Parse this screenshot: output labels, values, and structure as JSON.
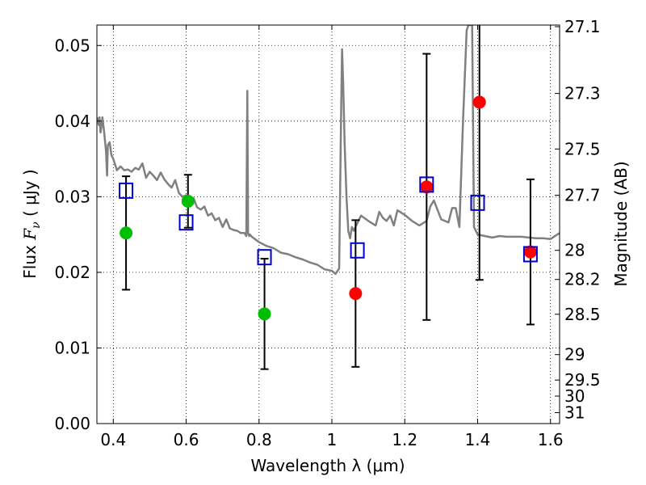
{
  "chart_data": {
    "type": "scatter",
    "xlabel": "Wavelength  λ (μm)",
    "ylabel": "Flux  F_ν  ( μJy )",
    "ylabel_parts": {
      "prefix": "Flux  ",
      "symbol": "F",
      "subscript": "ν",
      "suffix": "  ( μJy )"
    },
    "y2label": "Magnitude (AB)",
    "xlim": [
      0.355,
      1.625
    ],
    "ylim": [
      0.0,
      0.0527
    ],
    "grid": true,
    "grid_style": "dotted",
    "x_ticks": [
      0.4,
      0.6,
      0.8,
      1.0,
      1.2,
      1.4,
      1.6
    ],
    "x_tick_labels": [
      "0.4",
      "0.6",
      "0.8",
      "1",
      "1.2",
      "1.4",
      "1.6"
    ],
    "y_ticks": [
      0.0,
      0.01,
      0.02,
      0.03,
      0.04,
      0.05
    ],
    "y_tick_labels": [
      "0.00",
      "0.01",
      "0.02",
      "0.03",
      "0.04",
      "0.05"
    ],
    "y2_ticks": [
      27.1,
      27.3,
      27.5,
      27.7,
      28,
      28.2,
      28.5,
      29,
      29.5,
      30,
      31
    ],
    "y2_tick_labels": [
      "27.1",
      "27.3",
      "27.5",
      "27.7",
      "28",
      "28.2",
      "28.5",
      "29",
      "29.5",
      "30",
      "31"
    ],
    "series": [
      {
        "kind": "line",
        "color": "#808080",
        "x": [
          0.355,
          0.36,
          0.362,
          0.365,
          0.368,
          0.37,
          0.375,
          0.38,
          0.383,
          0.385,
          0.39,
          0.395,
          0.4,
          0.41,
          0.42,
          0.43,
          0.44,
          0.45,
          0.46,
          0.47,
          0.48,
          0.49,
          0.5,
          0.51,
          0.52,
          0.53,
          0.54,
          0.55,
          0.56,
          0.57,
          0.58,
          0.59,
          0.6,
          0.61,
          0.62,
          0.63,
          0.64,
          0.65,
          0.66,
          0.67,
          0.68,
          0.69,
          0.7,
          0.71,
          0.72,
          0.73,
          0.74,
          0.75,
          0.76,
          0.765,
          0.768,
          0.77,
          0.773,
          0.775,
          0.78,
          0.8,
          0.82,
          0.84,
          0.86,
          0.88,
          0.9,
          0.92,
          0.94,
          0.96,
          0.98,
          1.0,
          1.01,
          1.02,
          1.025,
          1.028,
          1.031,
          1.035,
          1.04,
          1.045,
          1.05,
          1.055,
          1.06,
          1.08,
          1.1,
          1.12,
          1.13,
          1.14,
          1.15,
          1.16,
          1.17,
          1.18,
          1.2,
          1.22,
          1.24,
          1.26,
          1.27,
          1.28,
          1.3,
          1.32,
          1.33,
          1.34,
          1.35,
          1.36,
          1.37,
          1.375,
          1.38,
          1.385,
          1.39,
          1.4,
          1.42,
          1.44,
          1.46,
          1.48,
          1.5,
          1.52,
          1.54,
          1.56,
          1.58,
          1.6,
          1.625
        ],
        "y": [
          0.0405,
          0.0395,
          0.0405,
          0.0385,
          0.0395,
          0.0405,
          0.0385,
          0.036,
          0.0328,
          0.0368,
          0.0372,
          0.0355,
          0.035,
          0.0335,
          0.034,
          0.0335,
          0.0336,
          0.0333,
          0.0338,
          0.0336,
          0.0344,
          0.0325,
          0.0333,
          0.0328,
          0.0322,
          0.0332,
          0.0323,
          0.0317,
          0.0312,
          0.0322,
          0.0305,
          0.03,
          0.0302,
          0.029,
          0.0298,
          0.0286,
          0.0283,
          0.0287,
          0.0275,
          0.0278,
          0.0269,
          0.0272,
          0.026,
          0.027,
          0.0258,
          0.0256,
          0.0255,
          0.0252,
          0.0252,
          0.0248,
          0.044,
          0.0252,
          0.0248,
          0.025,
          0.0247,
          0.024,
          0.0235,
          0.0232,
          0.0226,
          0.0224,
          0.022,
          0.0217,
          0.0213,
          0.021,
          0.0204,
          0.0202,
          0.0198,
          0.0205,
          0.04,
          0.0495,
          0.045,
          0.037,
          0.03,
          0.0255,
          0.0245,
          0.026,
          0.0255,
          0.0275,
          0.0268,
          0.0262,
          0.028,
          0.0272,
          0.0268,
          0.0275,
          0.0262,
          0.0282,
          0.0276,
          0.0268,
          0.0262,
          0.0268,
          0.0287,
          0.0295,
          0.027,
          0.0266,
          0.0285,
          0.0285,
          0.026,
          0.04,
          0.052,
          0.0527,
          0.0527,
          0.0527,
          0.026,
          0.025,
          0.0248,
          0.0246,
          0.0248,
          0.0247,
          0.0247,
          0.0247,
          0.0246,
          0.0245,
          0.0245,
          0.0244,
          0.0252
        ]
      },
      {
        "kind": "points",
        "marker": "circle",
        "color": "#00bf00",
        "x": [
          0.435,
          0.605,
          0.815
        ],
        "y": [
          0.0252,
          0.0294,
          0.0145
        ],
        "yerr": [
          0.0075,
          0.0035,
          0.0073
        ]
      },
      {
        "kind": "points",
        "marker": "circle",
        "color": "#ff0000",
        "x": [
          1.065,
          1.26,
          1.405,
          1.545
        ],
        "y": [
          0.0172,
          0.0313,
          0.0425,
          0.0227
        ],
        "yerr": [
          0.0097,
          0.0176,
          0.0235,
          0.0096
        ]
      },
      {
        "kind": "points",
        "marker": "open-square",
        "color": "#0000cc",
        "x": [
          0.435,
          0.6,
          0.815,
          1.07,
          1.26,
          1.4,
          1.545
        ],
        "y": [
          0.0308,
          0.0266,
          0.022,
          0.0229,
          0.0316,
          0.0292,
          0.0224
        ]
      }
    ]
  }
}
